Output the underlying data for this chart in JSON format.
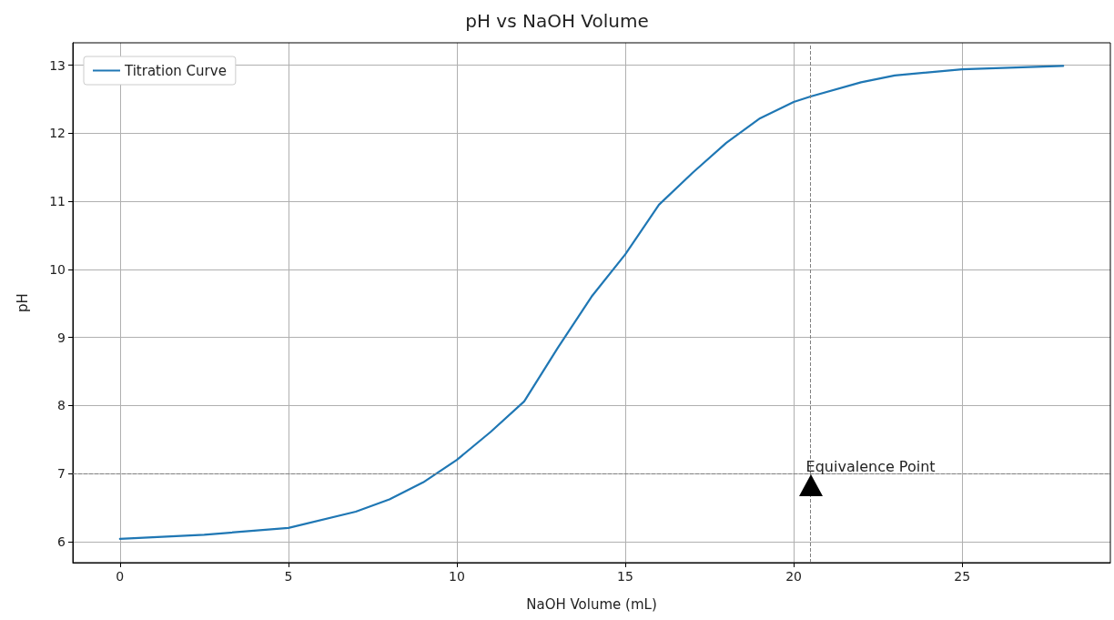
{
  "chart_data": {
    "type": "line",
    "title": "pH vs NaOH Volume",
    "xlabel": "NaOH Volume (mL)",
    "ylabel": "pH",
    "x": [
      0,
      2.5,
      5,
      7,
      8,
      9,
      10,
      11,
      12,
      13,
      14,
      15,
      16,
      17,
      18,
      19,
      20,
      20.5,
      22,
      23,
      25,
      28
    ],
    "series": [
      {
        "name": "Titration Curve",
        "color": "#1f77b4",
        "values": [
          6.04,
          6.1,
          6.2,
          6.44,
          6.62,
          6.87,
          7.2,
          7.61,
          8.06,
          8.85,
          9.6,
          10.22,
          10.95,
          11.42,
          11.86,
          12.22,
          12.46,
          12.54,
          12.75,
          12.85,
          12.94,
          12.99
        ]
      }
    ],
    "xlim": [
      -1.4,
      29.4
    ],
    "xticks": [
      0,
      5,
      10,
      15,
      20,
      25
    ],
    "ylim": [
      5.69,
      13.33
    ],
    "yticks": [
      6,
      7,
      8,
      9,
      10,
      11,
      12,
      13
    ],
    "ref_lines": [
      {
        "axis": "x",
        "value": 20.5,
        "color": "#808080",
        "line_style": "dashed"
      },
      {
        "axis": "y",
        "value": 7,
        "color": "#808080",
        "line_style": "dashed"
      }
    ],
    "annotations": [
      {
        "text": "Equivalence Point",
        "x": 20.5,
        "y": 7
      }
    ],
    "grid": true,
    "legend": "top left",
    "marker": "none",
    "line_style": "solid"
  }
}
